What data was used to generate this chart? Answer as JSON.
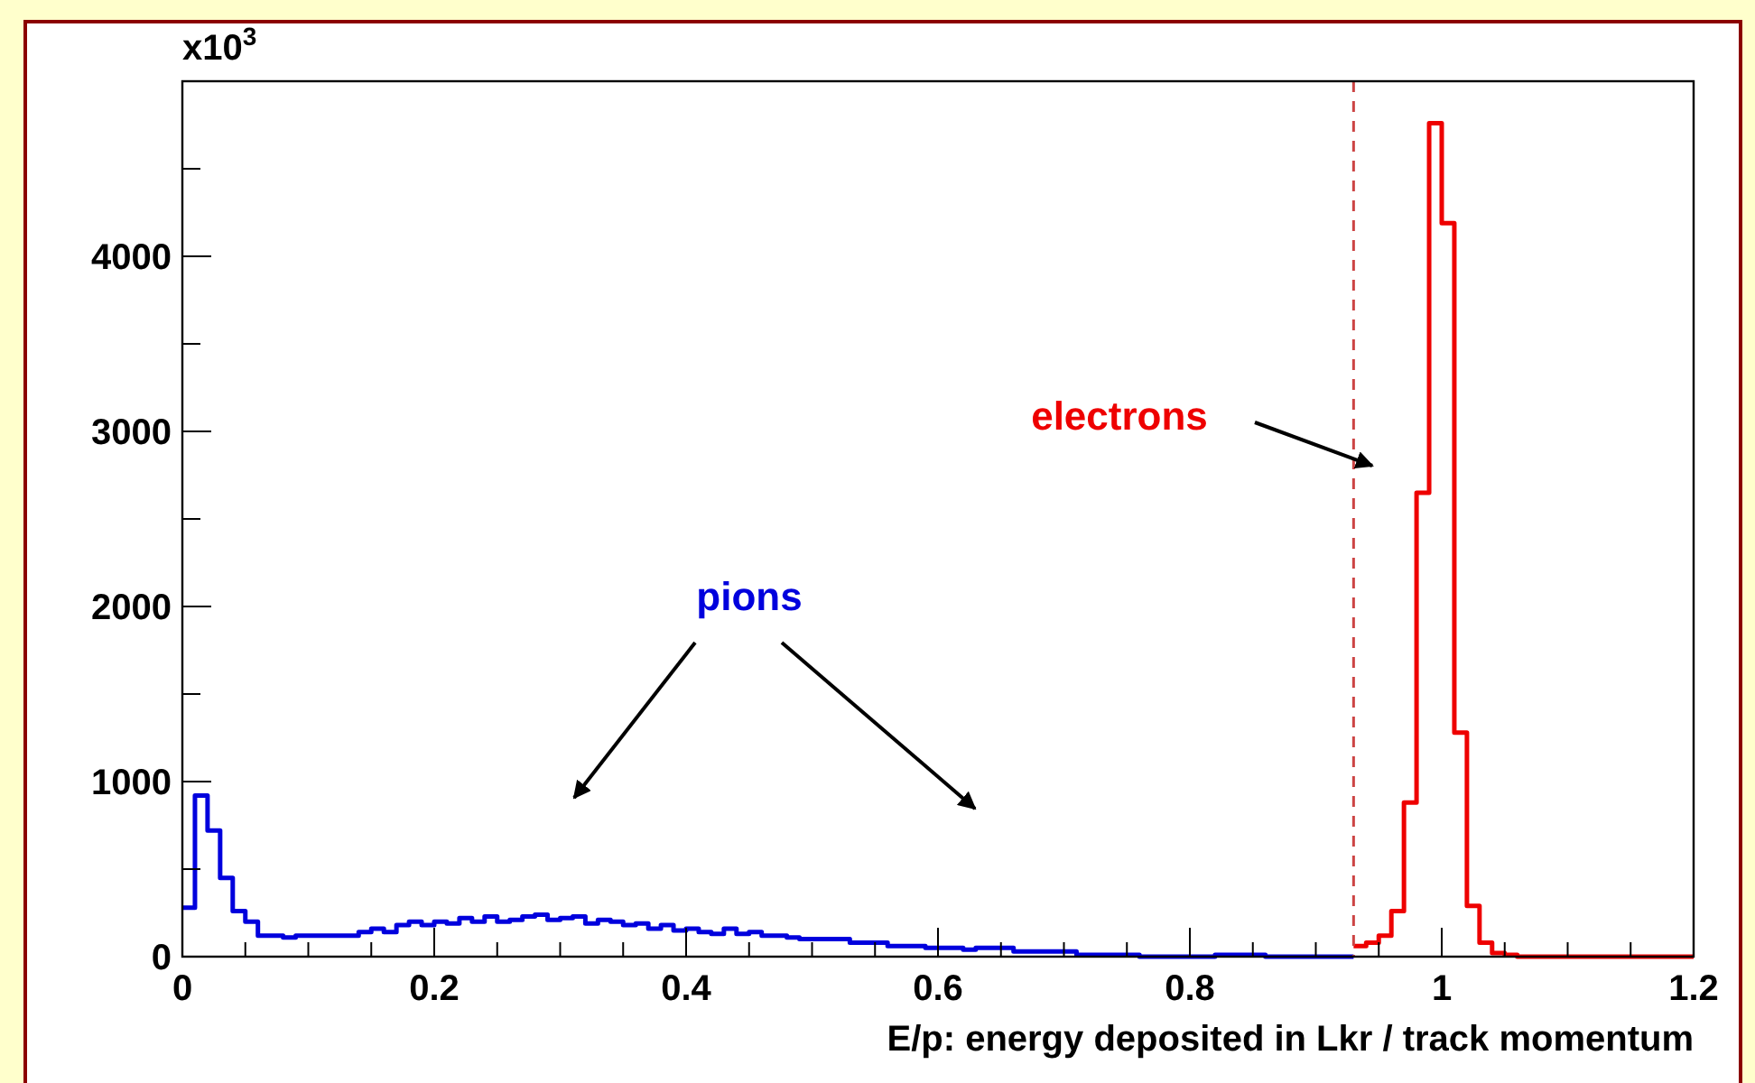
{
  "chart_data": {
    "type": "step",
    "xlabel": "E/p: energy deposited in Lkr / track momentum",
    "ylabel": "x10$^{3}$",
    "series": [
      {
        "name": "pions",
        "color": "#0000dd",
        "x": [
          0,
          0.01,
          0.02,
          0.03,
          0.04,
          0.05,
          0.06,
          0.07,
          0.08,
          0.09,
          0.1,
          0.11,
          0.12,
          0.13,
          0.14,
          0.15,
          0.16,
          0.17,
          0.18,
          0.19,
          0.2,
          0.21,
          0.22,
          0.23,
          0.24,
          0.25,
          0.26,
          0.27,
          0.28,
          0.29,
          0.3,
          0.31,
          0.32,
          0.33,
          0.34,
          0.35,
          0.36,
          0.37,
          0.38,
          0.39,
          0.4,
          0.41,
          0.42,
          0.43,
          0.44,
          0.45,
          0.46,
          0.47,
          0.48,
          0.49,
          0.5,
          0.51,
          0.52,
          0.53,
          0.54,
          0.55,
          0.56,
          0.57,
          0.58,
          0.59,
          0.6,
          0.61,
          0.62,
          0.63,
          0.64,
          0.65,
          0.66,
          0.67,
          0.68,
          0.69,
          0.7,
          0.71,
          0.72,
          0.73,
          0.74,
          0.75,
          0.76,
          0.77,
          0.78,
          0.79,
          0.8,
          0.81,
          0.82,
          0.83,
          0.84,
          0.85,
          0.86,
          0.87,
          0.88,
          0.89,
          0.9,
          0.91,
          0.92,
          0.93
        ],
        "values": [
          280,
          920,
          720,
          450,
          260,
          200,
          120,
          120,
          110,
          120,
          120,
          120,
          120,
          120,
          140,
          160,
          140,
          180,
          200,
          180,
          200,
          190,
          220,
          200,
          230,
          200,
          210,
          230,
          240,
          210,
          220,
          230,
          190,
          210,
          200,
          180,
          190,
          160,
          180,
          150,
          160,
          140,
          130,
          160,
          130,
          140,
          120,
          120,
          110,
          100,
          100,
          100,
          100,
          80,
          80,
          80,
          60,
          60,
          60,
          50,
          50,
          50,
          40,
          50,
          50,
          50,
          30,
          30,
          30,
          30,
          30,
          10,
          10,
          10,
          10,
          10,
          0,
          0,
          0,
          0,
          0,
          0,
          10,
          10,
          10,
          10,
          0,
          0,
          0,
          0,
          0,
          0,
          0,
          0
        ]
      },
      {
        "name": "electrons",
        "color": "#ee0000",
        "x": [
          0.93,
          0.94,
          0.95,
          0.96,
          0.97,
          0.98,
          0.99,
          1,
          1.01,
          1.02,
          1.03,
          1.04,
          1.05,
          1.06,
          1.07,
          1.08,
          1.09,
          1.1,
          1.11,
          1.12,
          1.13,
          1.14,
          1.15,
          1.16,
          1.17,
          1.18,
          1.19,
          1.2
        ],
        "values": [
          60,
          80,
          120,
          260,
          880,
          2650,
          4760,
          4190,
          1280,
          290,
          80,
          20,
          10,
          0,
          0,
          0,
          0,
          0,
          0,
          0,
          0,
          0,
          0,
          0,
          0,
          0,
          0,
          0
        ]
      }
    ],
    "xlim": [
      0,
      1.2
    ],
    "xticks": [
      0,
      {
        "value": 0.05,
        "label": null
      },
      {
        "value": 0.1,
        "label": null
      },
      {
        "value": 0.15,
        "label": null
      },
      0.2,
      {
        "value": 0.25,
        "label": null
      },
      {
        "value": 0.3,
        "label": null
      },
      {
        "value": 0.35,
        "label": null
      },
      0.4,
      {
        "value": 0.45,
        "label": null
      },
      {
        "value": 0.5,
        "label": null
      },
      {
        "value": 0.55,
        "label": null
      },
      0.6,
      {
        "value": 0.65,
        "label": null
      },
      {
        "value": 0.7,
        "label": null
      },
      {
        "value": 0.75,
        "label": null
      },
      0.8,
      {
        "value": 0.85,
        "label": null
      },
      {
        "value": 0.9,
        "label": null
      },
      {
        "value": 0.95,
        "label": null
      },
      1,
      {
        "value": 1.05,
        "label": null
      },
      {
        "value": 1.1,
        "label": null
      },
      {
        "value": 1.15,
        "label": null
      },
      1.2
    ],
    "ylim": [
      0,
      5000
    ],
    "yticks": [
      0,
      {
        "value": 500,
        "label": null
      },
      1000,
      {
        "value": 1500,
        "label": null
      },
      2000,
      {
        "value": 2500,
        "label": null
      },
      3000,
      {
        "value": 3500,
        "label": null
      },
      4000,
      {
        "value": 4500,
        "label": null
      }
    ],
    "ref_lines": [
      {
        "axis": "x",
        "value": 0.93,
        "color": "#cc4444",
        "line_style": "dashed"
      }
    ],
    "grid": false
  }
}
